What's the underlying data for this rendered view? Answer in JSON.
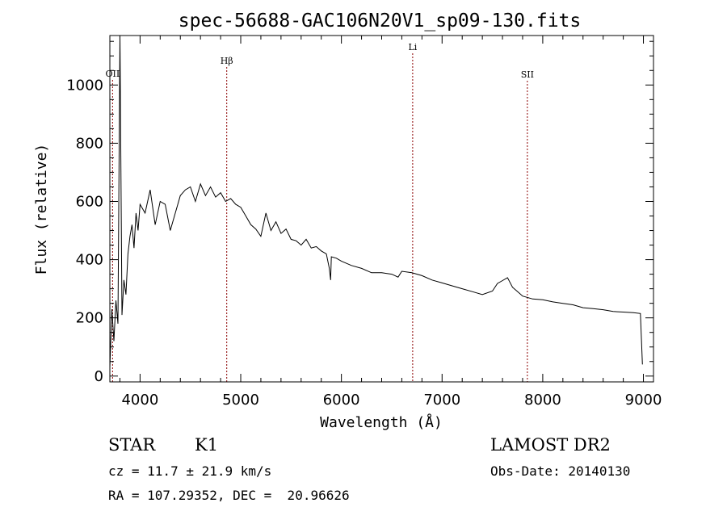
{
  "chart_data": {
    "type": "line",
    "title": "spec-56688-GAC106N20V1_sp09-130.fits",
    "xlabel": "Wavelength (Å)",
    "ylabel": "Flux (relative)",
    "xlim": [
      3700,
      9100
    ],
    "ylim": [
      -20,
      1170
    ],
    "x_ticks": [
      4000,
      5000,
      6000,
      7000,
      8000,
      9000
    ],
    "y_ticks": [
      0,
      200,
      400,
      600,
      800,
      1000
    ],
    "x_tick_labels": [
      "4000",
      "5000",
      "6000",
      "7000",
      "8000",
      "9000"
    ],
    "y_tick_labels": [
      "0",
      "200",
      "400",
      "600",
      "800",
      "1000"
    ],
    "grid": false,
    "series": [
      {
        "x": [
          3700,
          3720,
          3740,
          3760,
          3780,
          3800,
          3820,
          3840,
          3860,
          3880,
          3900,
          3920,
          3940,
          3960,
          3980,
          4000,
          4050,
          4100,
          4150,
          4200,
          4250,
          4300,
          4350,
          4400,
          4450,
          4500,
          4550,
          4600,
          4650,
          4700,
          4750,
          4800,
          4850,
          4900,
          4950,
          5000,
          5050,
          5100,
          5150,
          5200,
          5250,
          5300,
          5350,
          5400,
          5450,
          5500,
          5550,
          5600,
          5650,
          5700,
          5750,
          5800,
          5850,
          5880,
          5893,
          5900,
          5950,
          6000,
          6100,
          6200,
          6300,
          6400,
          6500,
          6563,
          6600,
          6700,
          6800,
          6900,
          7000,
          7100,
          7200,
          7300,
          7400,
          7500,
          7550,
          7600,
          7650,
          7700,
          7750,
          7800,
          7900,
          8000,
          8100,
          8200,
          8300,
          8400,
          8500,
          8600,
          8700,
          8800,
          8900,
          8970,
          8990
        ],
        "y": [
          30,
          230,
          120,
          260,
          180,
          1170,
          210,
          330,
          280,
          420,
          480,
          520,
          440,
          560,
          500,
          590,
          560,
          640,
          520,
          600,
          590,
          500,
          560,
          620,
          640,
          650,
          600,
          660,
          620,
          650,
          615,
          630,
          600,
          610,
          590,
          580,
          550,
          520,
          505,
          480,
          560,
          500,
          530,
          490,
          505,
          470,
          465,
          450,
          470,
          440,
          445,
          430,
          420,
          370,
          330,
          410,
          405,
          395,
          380,
          370,
          355,
          355,
          350,
          340,
          360,
          355,
          345,
          330,
          320,
          310,
          300,
          290,
          280,
          292,
          318,
          328,
          338,
          305,
          290,
          275,
          265,
          262,
          255,
          250,
          245,
          235,
          232,
          228,
          222,
          220,
          218,
          215,
          40
        ]
      }
    ],
    "lines": [
      {
        "label": "OII",
        "x": 3727
      },
      {
        "label": "Hβ",
        "x": 4861
      },
      {
        "label": "Li",
        "x": 6708
      },
      {
        "label": "SII",
        "x": 7847
      }
    ]
  },
  "info": {
    "class": "STAR",
    "subclass": "K1",
    "survey": "LAMOST DR2",
    "cz": "cz = 11.7 ± 21.9 km/s",
    "obs_date": "Obs-Date: 20140130",
    "coords": "RA = 107.29352, DEC =  20.96626"
  },
  "colors": {
    "spectrum": "#000000",
    "line_marker": "#8b0000"
  }
}
